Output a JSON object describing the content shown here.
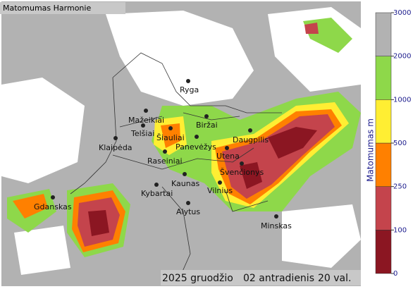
{
  "header": {
    "title": "Matomumas Harmonie"
  },
  "cities": [
    "Ryga",
    "Mažeikiai",
    "Telšiai",
    "Biržai",
    "Šiauliai",
    "Panevėžys",
    "Klaipėda",
    "Daugpilis",
    "Utena",
    "Raseiniai",
    "Švenčionys",
    "Kaunas",
    "Vilnius",
    "Kybartai",
    "Gdanskas",
    "Alytus",
    "Minskas"
  ],
  "footer": {
    "date": "2025 gruodžio",
    "day": "02 antradienis",
    "hour": "20 val."
  },
  "legend": {
    "title": "Matomumas m",
    "ticks": [
      "0",
      "100",
      "250",
      "500",
      "1000",
      "2000",
      "3000"
    ],
    "colors": [
      "#8b1622",
      "#c4444c",
      "#ff8000",
      "#ffee33",
      "#8ed84a",
      "#b2b2b2"
    ]
  }
}
